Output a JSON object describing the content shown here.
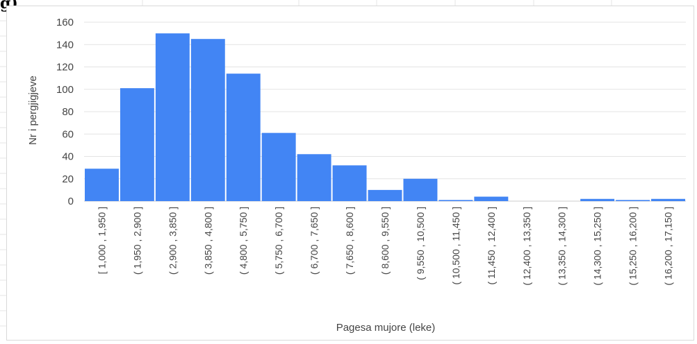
{
  "crop_fragment": "g)",
  "chart_data": {
    "type": "bar",
    "xlabel": "Pagesa mujore (leke)",
    "ylabel": "Nr i pergjigjeve",
    "ylim": [
      0,
      160
    ],
    "yticks": [
      0,
      20,
      40,
      60,
      80,
      100,
      120,
      140,
      160
    ],
    "grid": true,
    "bar_color": "#4285f4",
    "categories": [
      "[ 1,000 ,  1,950 ]",
      "( 1,950 ,  2,900 ]",
      "( 2,900 ,  3,850 ]",
      "( 3,850 ,  4,800 ]",
      "( 4,800 ,  5,750 ]",
      "( 5,750 ,  6,700 ]",
      "( 6,700 ,  7,650 ]",
      "( 7,650 ,  8,600 ]",
      "( 8,600 ,  9,550 ]",
      "( 9,550 ,  10,500 ]",
      "( 10,500 ,  11,450 ]",
      "( 11,450 ,  12,400 ]",
      "( 12,400 ,  13,350 ]",
      "( 13,350 ,  14,300 ]",
      "( 14,300 ,  15,250 ]",
      "( 15,250 ,  16,200 ]",
      "( 16,200 ,  17,150 ]"
    ],
    "values": [
      29,
      101,
      150,
      145,
      114,
      61,
      42,
      32,
      10,
      20,
      1,
      4,
      0,
      0,
      2,
      1,
      2
    ]
  }
}
